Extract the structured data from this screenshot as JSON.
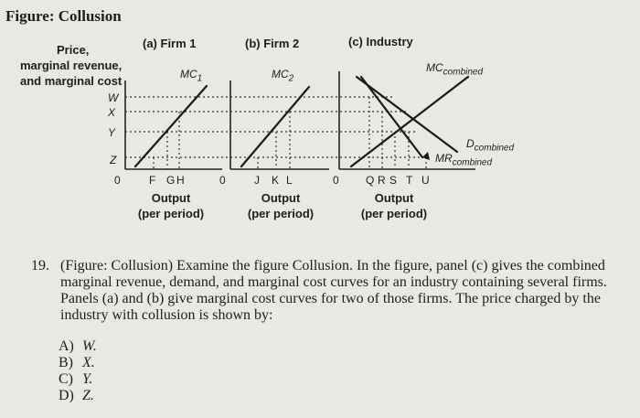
{
  "figure": {
    "title": "Figure: Collusion",
    "y_axis_label": [
      "Price,",
      "marginal revenue,",
      "and marginal cost"
    ],
    "y_ticks": [
      "W",
      "X",
      "Y",
      "Z"
    ],
    "panels": [
      {
        "title": "(a) Firm 1",
        "curve": "MC",
        "curve_sub": "1",
        "origin": "0",
        "x_ticks": [
          "F",
          "G",
          "H"
        ],
        "x_label": [
          "Output",
          "(per period)"
        ]
      },
      {
        "title": "(b) Firm 2",
        "curve": "MC",
        "curve_sub": "2",
        "origin": "0",
        "x_ticks": [
          "J",
          "K",
          "L"
        ],
        "x_label": [
          "Output",
          "(per period)"
        ]
      },
      {
        "title": "(c) Industry",
        "origin": "0",
        "x_ticks": [
          "Q",
          "R",
          "S",
          "T",
          "U"
        ],
        "x_label": [
          "Output",
          "(per period)"
        ],
        "curves": [
          {
            "name": "MC",
            "sub": "combined"
          },
          {
            "name": "D",
            "sub": "combined"
          },
          {
            "name": "MR",
            "sub": "combined"
          }
        ]
      }
    ]
  },
  "question": {
    "number": "19.",
    "text": "(Figure: Collusion) Examine the figure Collusion. In the figure, panel (c) gives the combined marginal revenue, demand, and marginal cost curves for an industry containing several firms. Panels (a) and (b) give marginal cost curves for two of those firms. The price charged by the industry with collusion is shown by:",
    "choices": [
      {
        "letter": "A)",
        "value": "W."
      },
      {
        "letter": "B)",
        "value": "X."
      },
      {
        "letter": "C)",
        "value": "Y."
      },
      {
        "letter": "D)",
        "value": "Z."
      }
    ]
  }
}
